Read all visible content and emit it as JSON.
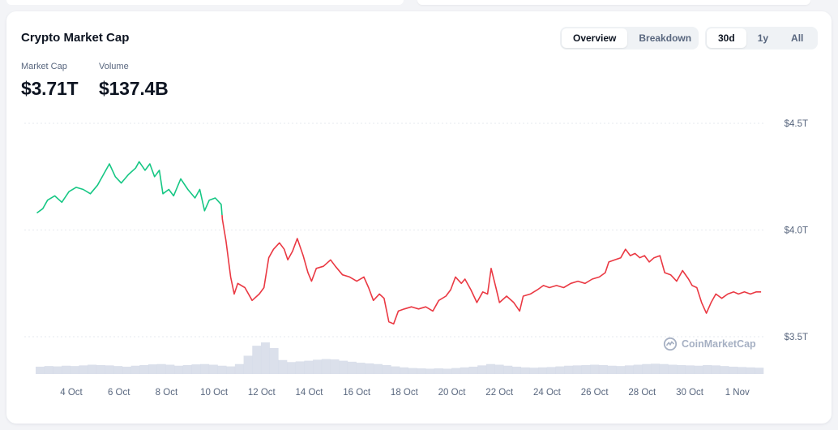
{
  "card": {
    "title": "Crypto Market Cap",
    "view_tabs": [
      "Overview",
      "Breakdown"
    ],
    "active_view": "Overview",
    "range_tabs": [
      "30d",
      "1y",
      "All"
    ],
    "active_range": "30d"
  },
  "stats": {
    "market_cap_label": "Market Cap",
    "market_cap_value": "$3.71T",
    "volume_label": "Volume",
    "volume_value": "$137.4B"
  },
  "watermark": "CoinMarketCap",
  "colors": {
    "up": "#16c784",
    "down": "#ea3943",
    "volume": "#cfd6e4",
    "grid": "#e6e9ef",
    "axis_text": "#58667e"
  },
  "chart_data": {
    "type": "line",
    "title": "",
    "xlabel": "",
    "ylabel": "",
    "ylim": [
      3.3,
      4.6
    ],
    "y_ticks": [
      {
        "value": 4.5,
        "label": "$4.5T"
      },
      {
        "value": 4.0,
        "label": "$4.0T"
      },
      {
        "value": 3.5,
        "label": "$3.5T"
      }
    ],
    "x_ticks": [
      "4 Oct",
      "6 Oct",
      "8 Oct",
      "10 Oct",
      "12 Oct",
      "14 Oct",
      "16 Oct",
      "18 Oct",
      "20 Oct",
      "22 Oct",
      "24 Oct",
      "26 Oct",
      "28 Oct",
      "30 Oct",
      "1 Nov"
    ],
    "x_tick_days": [
      4,
      6,
      8,
      10,
      12,
      14,
      16,
      18,
      20,
      22,
      24,
      26,
      28,
      30,
      32
    ],
    "x_range_days": [
      2.5,
      33.1
    ],
    "grid": true,
    "baseline": 4.07,
    "series": [
      {
        "values": [
          [
            2.55,
            4.08
          ],
          [
            2.8,
            4.1
          ],
          [
            3.0,
            4.14
          ],
          [
            3.3,
            4.16
          ],
          [
            3.6,
            4.13
          ],
          [
            3.9,
            4.18
          ],
          [
            4.2,
            4.2
          ],
          [
            4.5,
            4.19
          ],
          [
            4.8,
            4.17
          ],
          [
            5.1,
            4.21
          ],
          [
            5.4,
            4.27
          ],
          [
            5.6,
            4.31
          ],
          [
            5.85,
            4.25
          ],
          [
            6.1,
            4.22
          ],
          [
            6.4,
            4.26
          ],
          [
            6.7,
            4.29
          ],
          [
            6.85,
            4.32
          ],
          [
            7.1,
            4.28
          ],
          [
            7.3,
            4.31
          ],
          [
            7.5,
            4.25
          ],
          [
            7.7,
            4.28
          ],
          [
            7.85,
            4.17
          ],
          [
            8.1,
            4.19
          ],
          [
            8.3,
            4.16
          ],
          [
            8.6,
            4.24
          ],
          [
            8.9,
            4.19
          ],
          [
            9.2,
            4.15
          ],
          [
            9.4,
            4.19
          ],
          [
            9.6,
            4.09
          ],
          [
            9.8,
            4.14
          ],
          [
            10.05,
            4.15
          ],
          [
            10.3,
            4.12
          ],
          [
            10.35,
            4.05
          ],
          [
            10.5,
            3.95
          ],
          [
            10.7,
            3.78
          ],
          [
            10.85,
            3.7
          ],
          [
            11.0,
            3.75
          ],
          [
            11.3,
            3.73
          ],
          [
            11.6,
            3.67
          ],
          [
            11.9,
            3.7
          ],
          [
            12.1,
            3.73
          ],
          [
            12.3,
            3.87
          ],
          [
            12.5,
            3.91
          ],
          [
            12.75,
            3.94
          ],
          [
            12.95,
            3.91
          ],
          [
            13.1,
            3.86
          ],
          [
            13.3,
            3.9
          ],
          [
            13.5,
            3.96
          ],
          [
            13.75,
            3.88
          ],
          [
            13.95,
            3.8
          ],
          [
            14.1,
            3.76
          ],
          [
            14.3,
            3.82
          ],
          [
            14.6,
            3.83
          ],
          [
            14.9,
            3.86
          ],
          [
            15.1,
            3.83
          ],
          [
            15.4,
            3.79
          ],
          [
            15.7,
            3.78
          ],
          [
            16.0,
            3.76
          ],
          [
            16.3,
            3.78
          ],
          [
            16.5,
            3.73
          ],
          [
            16.7,
            3.67
          ],
          [
            16.95,
            3.7
          ],
          [
            17.15,
            3.68
          ],
          [
            17.35,
            3.57
          ],
          [
            17.55,
            3.56
          ],
          [
            17.75,
            3.62
          ],
          [
            18.0,
            3.63
          ],
          [
            18.3,
            3.64
          ],
          [
            18.6,
            3.63
          ],
          [
            18.9,
            3.64
          ],
          [
            19.2,
            3.62
          ],
          [
            19.45,
            3.67
          ],
          [
            19.75,
            3.69
          ],
          [
            19.95,
            3.72
          ],
          [
            20.15,
            3.78
          ],
          [
            20.4,
            3.75
          ],
          [
            20.55,
            3.77
          ],
          [
            20.8,
            3.72
          ],
          [
            21.05,
            3.66
          ],
          [
            21.3,
            3.71
          ],
          [
            21.5,
            3.7
          ],
          [
            21.65,
            3.82
          ],
          [
            21.85,
            3.73
          ],
          [
            22.0,
            3.66
          ],
          [
            22.3,
            3.69
          ],
          [
            22.6,
            3.66
          ],
          [
            22.85,
            3.62
          ],
          [
            23.0,
            3.69
          ],
          [
            23.3,
            3.7
          ],
          [
            23.6,
            3.72
          ],
          [
            23.85,
            3.74
          ],
          [
            24.1,
            3.73
          ],
          [
            24.4,
            3.74
          ],
          [
            24.7,
            3.73
          ],
          [
            25.0,
            3.75
          ],
          [
            25.3,
            3.76
          ],
          [
            25.6,
            3.75
          ],
          [
            25.9,
            3.77
          ],
          [
            26.2,
            3.78
          ],
          [
            26.45,
            3.8
          ],
          [
            26.6,
            3.85
          ],
          [
            26.85,
            3.86
          ],
          [
            27.1,
            3.87
          ],
          [
            27.3,
            3.91
          ],
          [
            27.5,
            3.88
          ],
          [
            27.7,
            3.89
          ],
          [
            27.9,
            3.87
          ],
          [
            28.1,
            3.88
          ],
          [
            28.3,
            3.85
          ],
          [
            28.5,
            3.87
          ],
          [
            28.75,
            3.88
          ],
          [
            28.95,
            3.8
          ],
          [
            29.2,
            3.79
          ],
          [
            29.45,
            3.76
          ],
          [
            29.7,
            3.81
          ],
          [
            29.95,
            3.77
          ],
          [
            30.1,
            3.74
          ],
          [
            30.3,
            3.73
          ],
          [
            30.5,
            3.66
          ],
          [
            30.7,
            3.61
          ],
          [
            30.9,
            3.66
          ],
          [
            31.1,
            3.7
          ],
          [
            31.35,
            3.68
          ],
          [
            31.6,
            3.7
          ],
          [
            31.85,
            3.71
          ],
          [
            32.05,
            3.7
          ],
          [
            32.3,
            3.71
          ],
          [
            32.55,
            3.7
          ],
          [
            32.8,
            3.71
          ],
          [
            33.0,
            3.71
          ]
        ]
      }
    ],
    "volume_profile": [
      0.22,
      0.24,
      0.23,
      0.25,
      0.24,
      0.26,
      0.28,
      0.27,
      0.26,
      0.24,
      0.22,
      0.25,
      0.27,
      0.29,
      0.3,
      0.28,
      0.25,
      0.27,
      0.29,
      0.3,
      0.28,
      0.25,
      0.23,
      0.3,
      0.55,
      0.85,
      0.95,
      0.78,
      0.42,
      0.36,
      0.38,
      0.4,
      0.43,
      0.45,
      0.44,
      0.4,
      0.37,
      0.34,
      0.32,
      0.3,
      0.27,
      0.23,
      0.2,
      0.18,
      0.17,
      0.16,
      0.17,
      0.16,
      0.18,
      0.2,
      0.22,
      0.26,
      0.3,
      0.28,
      0.25,
      0.22,
      0.2,
      0.19,
      0.2,
      0.21,
      0.23,
      0.25,
      0.26,
      0.27,
      0.28,
      0.27,
      0.25,
      0.24,
      0.26,
      0.28,
      0.3,
      0.31,
      0.3,
      0.28,
      0.27,
      0.26,
      0.25,
      0.27,
      0.26,
      0.24,
      0.22,
      0.21,
      0.2,
      0.19
    ]
  }
}
